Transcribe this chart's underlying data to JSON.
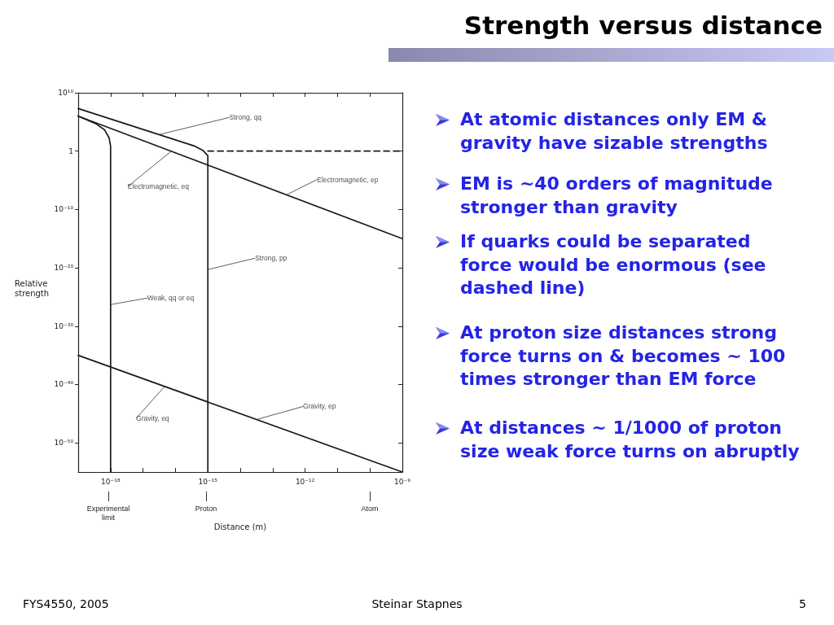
{
  "chart_data": {
    "type": "line",
    "title": "Strength versus distance",
    "xlabel": "Distance (m)",
    "ylabel": "Relative strength",
    "log": "xy",
    "marker": "none",
    "line_style": "solid",
    "xlim": [
      1e-19,
      1e-09
    ],
    "xticks": [
      {
        "value": 1e-18,
        "label": "10⁻¹⁸"
      },
      {
        "value": 1e-17,
        "label": null
      },
      {
        "value": 1e-16,
        "label": null
      },
      {
        "value": 1e-15,
        "label": "10⁻¹⁵"
      },
      {
        "value": 1e-14,
        "label": null
      },
      {
        "value": 1e-13,
        "label": null
      },
      {
        "value": 1e-12,
        "label": "10⁻¹²"
      },
      {
        "value": 1e-11,
        "label": null
      },
      {
        "value": 1e-10,
        "label": null
      },
      {
        "value": 1e-09,
        "label": "10⁻⁹"
      }
    ],
    "ylim": [
      1e-55,
      10000000000.0
    ],
    "yticks": [
      {
        "value": 1e-50,
        "label": "10⁻⁵⁰"
      },
      {
        "value": 1e-40,
        "label": "10⁻⁴⁰"
      },
      {
        "value": 1e-30,
        "label": "10⁻³⁰"
      },
      {
        "value": 1e-20,
        "label": "10⁻²⁰"
      },
      {
        "value": 1e-10,
        "label": "10⁻¹⁰"
      },
      1,
      {
        "value": 10000000000.0,
        "label": "10¹⁰"
      }
    ],
    "series": [
      {
        "color": "#1a1a1a",
        "x": [
          1e-19,
          1e-09
        ],
        "values": [
          1000000.0,
          1e-15
        ]
      },
      {
        "color": "#1a1a1a",
        "x": [
          1e-19,
          4e-16,
          7e-16,
          1e-15,
          1e-15
        ],
        "values": [
          20000000.0,
          7,
          1.4,
          0.16,
          1e-55
        ]
      },
      {
        "color": "#1a1a1a",
        "x": [
          1e-15,
          1e-09
        ],
        "values": [
          1,
          1
        ],
        "line_style": "dashed"
      },
      {
        "color": "#1a1a1a",
        "x": [
          1e-19,
          3.6e-19,
          6.5e-19,
          9e-19,
          1e-18,
          1e-18
        ],
        "values": [
          1000000.0,
          45000.0,
          4600.0,
          180,
          7,
          1e-55
        ]
      },
      {
        "color": "#1a1a1a",
        "x": [
          1e-19,
          1e-09
        ],
        "values": [
          1e-35,
          1e-55
        ]
      }
    ],
    "annotations": [
      {
        "text": "Strong, qq",
        "x": 3.2e-17,
        "y": 700
      },
      {
        "text": "Electromagnetic, eq",
        "x": 7.5e-17,
        "y": 1
      },
      {
        "text": "Electromagnetic, ep",
        "x": 2.6e-13,
        "y": 3e-08
      },
      {
        "text": "Strong, pp",
        "x": 1e-15,
        "y": 5e-21
      },
      {
        "text": "Weak, qq or eq",
        "x": 1e-18,
        "y": 5e-27
      },
      {
        "text": "Gravity, eq",
        "x": 4.7e-17,
        "y": 5e-41
      },
      {
        "text": "Gravity, ep",
        "x": 3.2e-14,
        "y": 1e-46
      },
      "Experimental limit",
      "Proton",
      "Atom",
      "At atomic distances only EM & gravity have sizable strengths",
      "EM is ~40 orders of magnitude stronger than gravity",
      "If quarks could be separated force would be enormous (see dashed line)",
      "At proton size distances strong force turns on & becomes ~ 100 times stronger than EM force",
      "At distances ~ 1/1000 of proton size weak force turns on abruptly",
      "FYS4550, 2005",
      "Steinar Stapnes",
      "5"
    ]
  }
}
